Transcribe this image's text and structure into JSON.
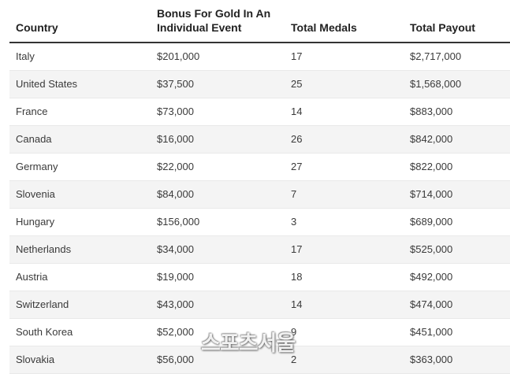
{
  "table": {
    "headers": [
      "Country",
      "Bonus For Gold In An Individual Event",
      "Total Medals",
      "Total Payout"
    ],
    "rows": [
      [
        "Italy",
        "$201,000",
        "17",
        "$2,717,000"
      ],
      [
        "United States",
        "$37,500",
        "25",
        "$1,568,000"
      ],
      [
        "France",
        "$73,000",
        "14",
        "$883,000"
      ],
      [
        "Canada",
        "$16,000",
        "26",
        "$842,000"
      ],
      [
        "Germany",
        "$22,000",
        "27",
        "$822,000"
      ],
      [
        "Slovenia",
        "$84,000",
        "7",
        "$714,000"
      ],
      [
        "Hungary",
        "$156,000",
        "3",
        "$689,000"
      ],
      [
        "Netherlands",
        "$34,000",
        "17",
        "$525,000"
      ],
      [
        "Austria",
        "$19,000",
        "18",
        "$492,000"
      ],
      [
        "Switzerland",
        "$43,000",
        "14",
        "$474,000"
      ],
      [
        "South Korea",
        "$52,000",
        "9",
        "$451,000"
      ],
      [
        "Slovakia",
        "$56,000",
        "2",
        "$363,000"
      ]
    ]
  },
  "watermark": {
    "text": "스포츠서울"
  }
}
